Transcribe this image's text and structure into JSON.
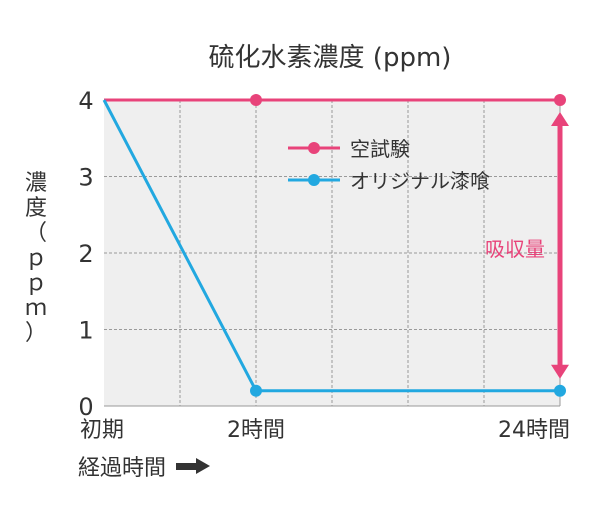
{
  "chart_data": {
    "type": "line",
    "title": "硫化水素濃度 (ppm)",
    "ylabel_chars": [
      "濃",
      "度",
      "（",
      "ｐ",
      "ｐ",
      "ｍ",
      "）"
    ],
    "xlabel": "経過時間",
    "x_categories": [
      "初期",
      "2時間",
      "24時間"
    ],
    "ylim": [
      0,
      4
    ],
    "y_ticks": [
      "0",
      "1",
      "2",
      "3",
      "4"
    ],
    "grid": true,
    "legend_position": "top-center",
    "series": [
      {
        "name": "空試験",
        "color": "#e8437a",
        "values": [
          4,
          4,
          4
        ]
      },
      {
        "name": "オリジナル漆喰",
        "color": "#22a8e0",
        "values": [
          4,
          0.2,
          0.2
        ]
      }
    ],
    "annotation": {
      "text": "吸収量",
      "color": "#e8437a"
    }
  },
  "colors": {
    "plot_bg": "#efefef",
    "grid": "#9a9a9a",
    "text": "#333333"
  }
}
